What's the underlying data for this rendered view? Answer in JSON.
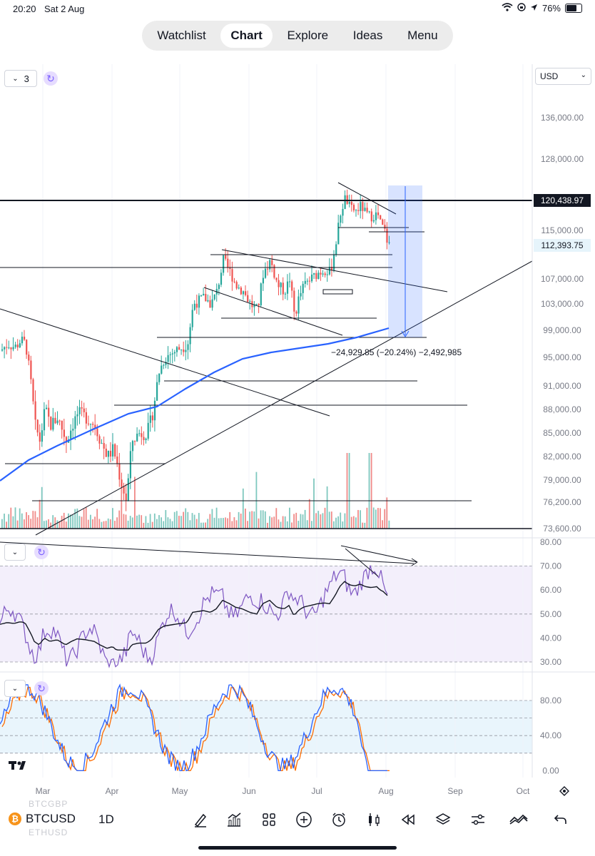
{
  "status": {
    "time": "20:20",
    "date": "Sat 2 Aug",
    "battery": "76%",
    "battery_level": 0.76
  },
  "nav": {
    "tabs": [
      {
        "label": "Watchlist"
      },
      {
        "label": "Chart",
        "active": true
      },
      {
        "label": "Explore"
      },
      {
        "label": "Ideas"
      },
      {
        "label": "Menu"
      }
    ]
  },
  "legend": {
    "indicator_count": "3"
  },
  "currency": "USD",
  "symbol": {
    "ticker": "BTCUSD",
    "interval": "1D",
    "ghost_above": "BTCGBP",
    "ghost_below": "ETHUSD"
  },
  "colors": {
    "up": "#26a69a",
    "down": "#ef5350",
    "sma": "#2962ff",
    "rsi": "#7e57c2",
    "stoch_k": "#2962ff",
    "stoch_d": "#ff6d00"
  },
  "chart_data": [
    {
      "type": "candlestick",
      "price_axis": [
        "136,000.00",
        "128,000.00",
        "120,438.97",
        "115,000.00",
        "112,393.75",
        "107,000.00",
        "103,000.00",
        "99,000.00",
        "95,000.00",
        "91,000.00",
        "88,000.00",
        "85,000.00",
        "82,000.00",
        "79,000.00",
        "76,200.00",
        "73,600.00"
      ],
      "price_axis_values": [
        136000,
        128000,
        120438.97,
        115000,
        112393.75,
        107000,
        103000,
        99000,
        95000,
        91000,
        88000,
        85000,
        82000,
        79000,
        76200,
        73600
      ],
      "horizontal_line_label": "120,438.97",
      "last_price_label": "112,393.75",
      "measure_label": "−24,929.85 (−20.24%) −2,492,985",
      "time_axis": [
        "Mar",
        "Apr",
        "May",
        "Jun",
        "Jul",
        "Aug",
        "Sep",
        "Oct"
      ]
    },
    {
      "type": "line",
      "name_hint": "rsi",
      "axis": [
        "80.00",
        "70.00",
        "60.00",
        "50.00",
        "40.00",
        "30.00"
      ],
      "axis_values": [
        80,
        70,
        60,
        50,
        40,
        30
      ]
    },
    {
      "type": "line",
      "name_hint": "stochastic",
      "axis": [
        "80.00",
        "40.00",
        "0.00"
      ],
      "axis_values": [
        80,
        40,
        0
      ]
    }
  ],
  "tools": [
    "brush-icon",
    "indicators-icon",
    "layouts-icon",
    "add-icon",
    "alert-icon",
    "candles-icon",
    "replay-icon",
    "layers-icon",
    "settings-sliders-icon",
    "compare-icon",
    "undo-icon"
  ]
}
